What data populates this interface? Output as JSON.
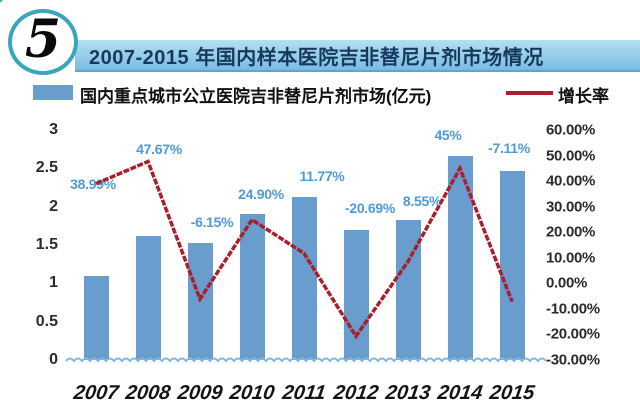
{
  "badge": {
    "number": "5"
  },
  "title": "2007-2015 年国内样本医院吉非替尼片剂市场情况",
  "legend": {
    "bar_label": "国内重点城市公立医院吉非替尼片剂市场(亿元)",
    "line_label": "增长率"
  },
  "colors": {
    "bar": "#689dce",
    "growth_line": "#a91f2e",
    "data_label": "#4d9ad8",
    "title_text": "#17395e",
    "title_bar_bg": "#79bce0",
    "badge_border": "#3aa5bd",
    "baseline_wave": "#85b8e0"
  },
  "chart_data": {
    "type": "bar",
    "subtype": "combo bar + line, dual axis",
    "title": "2007-2015 年国内样本医院吉非替尼片剂市场情况",
    "categories": [
      "2007",
      "2008",
      "2009",
      "2010",
      "2011",
      "2012",
      "2013",
      "2014",
      "2015"
    ],
    "series": [
      {
        "name": "国内重点城市公立医院吉非替尼片剂市场(亿元)",
        "type": "bar",
        "axis": "left",
        "values": [
          1.1,
          1.62,
          1.52,
          1.9,
          2.13,
          1.69,
          1.83,
          2.66,
          2.47
        ]
      },
      {
        "name": "增长率",
        "type": "line",
        "axis": "right",
        "values": [
          38.99,
          47.67,
          -6.15,
          24.9,
          11.77,
          -20.69,
          8.55,
          45,
          -7.11
        ],
        "point_labels": [
          "38.99%",
          "47.67%",
          "-6.15%",
          "24.90%",
          "11.77%",
          "-20.69%",
          "8.55%",
          "45%",
          "-7.11%"
        ]
      }
    ],
    "left_axis": {
      "ticks": [
        "3",
        "2.5",
        "2",
        "1.5",
        "1",
        "0.5",
        "0"
      ],
      "min": 0,
      "max": 3
    },
    "right_axis": {
      "ticks": [
        "60.00%",
        "50.00%",
        "40.00%",
        "30.00%",
        "20.00%",
        "10.00%",
        "0.00%",
        "-10.00%",
        "-20.00%",
        "-30.00%"
      ],
      "min": -30,
      "max": 60
    },
    "grid": false,
    "legend_position": "top"
  }
}
